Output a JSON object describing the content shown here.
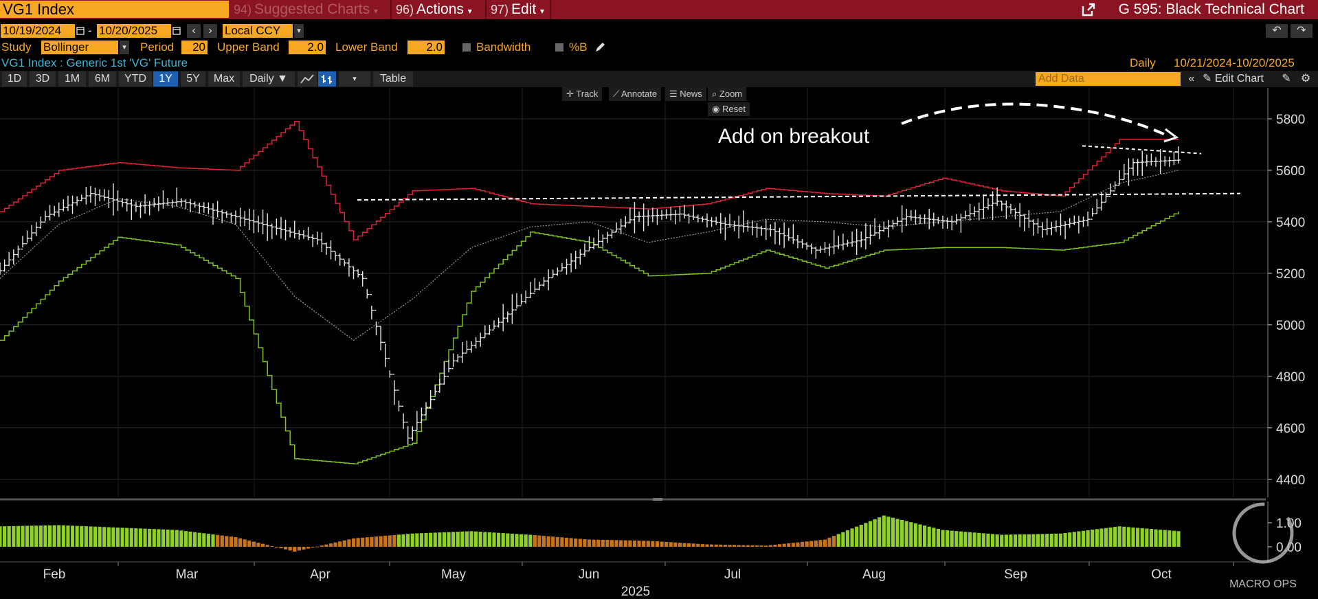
{
  "header": {
    "ticker": "VG1 Index",
    "menus": [
      {
        "num": "94)",
        "label": "Suggested Charts"
      },
      {
        "num": "96)",
        "label": "Actions"
      },
      {
        "num": "97)",
        "label": "Edit"
      }
    ],
    "chart_title": "G 595: Black Technical Chart"
  },
  "controls": {
    "start_date": "10/19/2024",
    "date_sep": "-",
    "end_date": "10/20/2025",
    "currency": "Local CCY",
    "study_label": "Study",
    "study": "Bollinger",
    "period_label": "Period",
    "period": "20",
    "upper_label": "Upper Band",
    "upper": "2.0",
    "lower_label": "Lower Band",
    "lower": "2.0",
    "bandwidth_label": "Bandwidth",
    "pctb_label": "%B"
  },
  "security": {
    "description": "VG1 Index : Generic 1st 'VG' Future",
    "frequency": "Daily",
    "range": "10/21/2024-10/20/2025"
  },
  "toolbar": {
    "ranges": [
      "1D",
      "3D",
      "1M",
      "6M",
      "YTD",
      "1Y",
      "5Y",
      "Max"
    ],
    "active_range": "1Y",
    "frequency": "Daily ▼",
    "table": "Table",
    "add_data_placeholder": "Add Data",
    "edit_chart": "Edit Chart",
    "track": "Track",
    "annotate": "Annotate",
    "news": "News",
    "zoom": "Zoom",
    "reset": "Reset"
  },
  "colors": {
    "upper_band": "#e0213a",
    "lower_band": "#7fc31c",
    "price": "#e8e8e8",
    "mid_band": "#9a9a9a",
    "bar_positive": "#8fd12a",
    "bar_negative": "#c8741a",
    "accent": "#f7a823",
    "header_red": "#8a1421"
  },
  "chart_data": {
    "type": "line",
    "annotation": "Add on breakout",
    "watermark": "MACRO OPS",
    "x_labels": [
      "Feb",
      "Mar",
      "Apr",
      "May",
      "Jun",
      "Jul",
      "Aug",
      "Sep",
      "Oct"
    ],
    "year_label": "2025",
    "y_ticks": [
      4400,
      4600,
      4800,
      5000,
      5200,
      5400,
      5600,
      5800
    ],
    "ylim": [
      4330,
      5920
    ],
    "lower_ticks": [
      "1.00",
      "0.00"
    ],
    "x": [
      0,
      10,
      20,
      30,
      40,
      50,
      60,
      70,
      80,
      90,
      100,
      110,
      120,
      130,
      140,
      150,
      160,
      170,
      180,
      190,
      200,
      210,
      220,
      230,
      240,
      250,
      260
    ],
    "price": [
      5210,
      5420,
      5510,
      5460,
      5480,
      5430,
      5380,
      5330,
      5180,
      4560,
      4860,
      5010,
      5170,
      5300,
      5420,
      5430,
      5390,
      5370,
      5290,
      5330,
      5420,
      5400,
      5480,
      5370,
      5410,
      5630,
      5640
    ],
    "upper_band": [
      5440,
      5600,
      5630,
      5610,
      5600,
      5790,
      5330,
      5520,
      5530,
      5470,
      5460,
      5450,
      5470,
      5530,
      5510,
      5500,
      5570,
      5520,
      5500,
      5720,
      5720
    ],
    "lower_band": [
      4940,
      5170,
      5340,
      5310,
      5180,
      4480,
      4460,
      4540,
      5130,
      5360,
      5320,
      5190,
      5200,
      5290,
      5220,
      5290,
      5300,
      5300,
      5290,
      5320,
      5440
    ],
    "mid_band": [
      5180,
      5390,
      5490,
      5460,
      5390,
      5110,
      4940,
      5100,
      5300,
      5380,
      5400,
      5320,
      5360,
      5410,
      5400,
      5380,
      5400,
      5420,
      5440,
      5550,
      5600
    ],
    "percent_b": [
      0.85,
      0.9,
      0.8,
      0.7,
      0.4,
      -0.2,
      0.35,
      0.55,
      0.65,
      0.5,
      0.3,
      0.25,
      0.1,
      0.05,
      0.3,
      1.3,
      0.7,
      0.5,
      0.55,
      0.85,
      0.65
    ]
  }
}
